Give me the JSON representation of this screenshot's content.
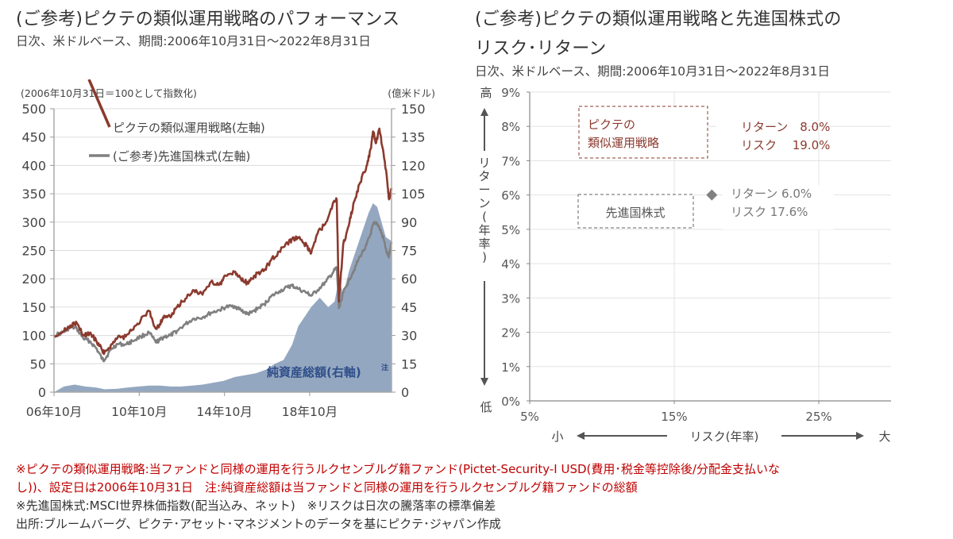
{
  "left": {
    "title": "(ご参考)ピクテの類似運用戦略のパフォーマンス",
    "subtitle": "日次、米ドルベース、期間:2006年10月31日～2022年8月31日"
  },
  "right": {
    "title_line1": "(ご参考)ピクテの類似運用戦略と先進国株式の",
    "title_line2": "リスク･リターン",
    "subtitle": "日次、米ドルベース、期間:2006年10月31日～2022年8月31日"
  },
  "notes": {
    "line1": "※ピクテの類似運用戦略:当ファンドと同様の運用を行うルクセンブルグ籍ファンド(Pictet-Security-I USD(費用･税金等控除後/分配金支払いな",
    "line2": "し))、設定日は2006年10月31日　注:純資産総額は当ファンドと同様の運用を行うルクセンブルグ籍ファンドの総額",
    "line3": "※先進国株式:MSCI世界株価指数(配当込み、ネット)　※リスクは日次の騰落率の標準偏差",
    "line4": "出所:ブルームバーグ、ピクテ･アセット･マネジメントのデータを基にピクテ･ジャパン作成"
  },
  "colors": {
    "strategy": "#8b3a2e",
    "msci": "#808080",
    "aum_fill": "#94a7c0",
    "aum_label": "#2f4f8a",
    "note_red": "#c00000"
  },
  "chart_data": [
    {
      "type": "line",
      "left_axis_label": "(2006年10月31日＝100として指数化)",
      "right_axis_label": "(億米ドル)",
      "ylim_left": [
        0,
        500
      ],
      "ylim_right": [
        0,
        150
      ],
      "yticks_left": [
        "0",
        "50",
        "100",
        "150",
        "200",
        "250",
        "300",
        "350",
        "400",
        "450",
        "500"
      ],
      "yticks_right": [
        "0",
        "15",
        "30",
        "45",
        "60",
        "75",
        "90",
        "105",
        "120",
        "135",
        "150"
      ],
      "xlim": [
        2006.83,
        2022.67
      ],
      "xticks": [
        {
          "value": 2006.83,
          "label": "06年10月"
        },
        {
          "value": 2010.83,
          "label": "10年10月"
        },
        {
          "value": 2014.83,
          "label": "14年10月"
        },
        {
          "value": 2018.83,
          "label": "18年10月"
        }
      ],
      "grid": true,
      "legend": "top-left",
      "series": [
        {
          "name": "ピクテの類似運用戦略(左軸)",
          "axis": "left",
          "kind": "line",
          "x": [
            2006.83,
            2007.3,
            2007.6,
            2007.9,
            2008.2,
            2008.5,
            2008.8,
            2009.1,
            2009.2,
            2009.5,
            2009.8,
            2010.2,
            2010.5,
            2010.9,
            2011.3,
            2011.6,
            2011.8,
            2012.0,
            2012.3,
            2012.6,
            2013.0,
            2013.4,
            2013.8,
            2014.2,
            2014.6,
            2014.9,
            2015.3,
            2015.6,
            2015.9,
            2016.1,
            2016.4,
            2016.7,
            2017.0,
            2017.4,
            2017.8,
            2018.0,
            2018.3,
            2018.7,
            2018.9,
            2019.2,
            2019.6,
            2019.9,
            2020.1,
            2020.2,
            2020.4,
            2020.7,
            2020.9,
            2021.2,
            2021.5,
            2021.7,
            2021.8,
            2021.95,
            2022.1,
            2022.3,
            2022.45,
            2022.55,
            2022.67
          ],
          "y": [
            100,
            108,
            118,
            122,
            100,
            104,
            92,
            73,
            70,
            83,
            95,
            98,
            110,
            127,
            143,
            112,
            120,
            135,
            132,
            150,
            165,
            180,
            172,
            195,
            190,
            205,
            212,
            200,
            193,
            200,
            210,
            215,
            232,
            248,
            262,
            270,
            272,
            258,
            245,
            280,
            300,
            330,
            340,
            160,
            260,
            300,
            335,
            370,
            400,
            430,
            460,
            440,
            465,
            420,
            380,
            340,
            360
          ]
        },
        {
          "name": "(ご参考)先進国株式(左軸)",
          "axis": "left",
          "kind": "line",
          "x": [
            2006.83,
            2007.3,
            2007.6,
            2007.9,
            2008.2,
            2008.5,
            2008.8,
            2009.1,
            2009.2,
            2009.5,
            2009.8,
            2010.2,
            2010.5,
            2010.9,
            2011.3,
            2011.6,
            2011.8,
            2012.0,
            2012.3,
            2012.6,
            2013.0,
            2013.4,
            2013.8,
            2014.2,
            2014.6,
            2014.9,
            2015.3,
            2015.6,
            2015.9,
            2016.1,
            2016.4,
            2016.7,
            2017.0,
            2017.4,
            2017.8,
            2018.0,
            2018.3,
            2018.7,
            2018.9,
            2019.2,
            2019.6,
            2019.9,
            2020.1,
            2020.2,
            2020.4,
            2020.7,
            2020.9,
            2021.2,
            2021.5,
            2021.7,
            2021.8,
            2021.95,
            2022.1,
            2022.3,
            2022.45,
            2022.55,
            2022.67
          ],
          "y": [
            100,
            106,
            115,
            112,
            95,
            90,
            78,
            58,
            57,
            75,
            85,
            84,
            90,
            98,
            105,
            88,
            92,
            98,
            100,
            108,
            120,
            130,
            132,
            140,
            145,
            150,
            152,
            145,
            138,
            140,
            148,
            155,
            168,
            178,
            185,
            188,
            182,
            175,
            170,
            180,
            195,
            210,
            220,
            148,
            175,
            200,
            215,
            240,
            260,
            280,
            295,
            300,
            290,
            270,
            245,
            240,
            265
          ]
        },
        {
          "name": "純資産総額(右軸)",
          "axis": "right",
          "kind": "area",
          "x": [
            2006.83,
            2007.3,
            2007.8,
            2008.3,
            2008.8,
            2009.2,
            2009.8,
            2010.3,
            2010.8,
            2011.3,
            2011.8,
            2012.3,
            2012.8,
            2013.3,
            2013.8,
            2014.3,
            2014.8,
            2015.3,
            2015.8,
            2016.3,
            2016.8,
            2017.2,
            2017.6,
            2018.0,
            2018.3,
            2018.6,
            2018.9,
            2019.3,
            2019.7,
            2020.0,
            2020.2,
            2020.4,
            2020.7,
            2021.0,
            2021.3,
            2021.6,
            2021.8,
            2022.0,
            2022.2,
            2022.4,
            2022.67
          ],
          "y": [
            0,
            3,
            4,
            3,
            2.5,
            1.5,
            1.8,
            2.5,
            3,
            3.5,
            3.5,
            3,
            3,
            3.5,
            4,
            5,
            6,
            8,
            9,
            10,
            12,
            15,
            17,
            25,
            35,
            40,
            45,
            50,
            45,
            48,
            60,
            52,
            65,
            75,
            85,
            95,
            100,
            98,
            90,
            82,
            80
          ]
        }
      ],
      "annotation": "純資産総額(右軸)",
      "annotation_sup": "注"
    },
    {
      "type": "scatter",
      "xlabel": "リスク(年率)",
      "ylabel": "リターン(年率)",
      "x_low_label": "小",
      "x_high_label": "大",
      "y_high_label": "高",
      "y_low_label": "低",
      "xlim": [
        5,
        30
      ],
      "ylim": [
        0,
        9
      ],
      "xticks": [
        "5%",
        "15%",
        "25%"
      ],
      "xtick_values": [
        5,
        15,
        25
      ],
      "yticks": [
        "0%",
        "1%",
        "2%",
        "3%",
        "4%",
        "5%",
        "6%",
        "7%",
        "8%",
        "9%"
      ],
      "ytick_values": [
        0,
        1,
        2,
        3,
        4,
        5,
        6,
        7,
        8,
        9
      ],
      "grid": true,
      "points": [
        {
          "name": "ピクテの\n類似運用戦略",
          "label_line1": "ピクテの",
          "label_line2": "類似運用戦略",
          "risk": 19.0,
          "return": 8.0,
          "return_text": "リターン　8.0%",
          "risk_text": "リスク　 19.0%",
          "color": "#8b3a2e"
        },
        {
          "name": "先進国株式",
          "label_line1": "先進国株式",
          "risk": 17.6,
          "return": 6.0,
          "return_text": "リターン 6.0%",
          "risk_text": "リスク  17.6%",
          "color": "#808080"
        }
      ]
    }
  ]
}
